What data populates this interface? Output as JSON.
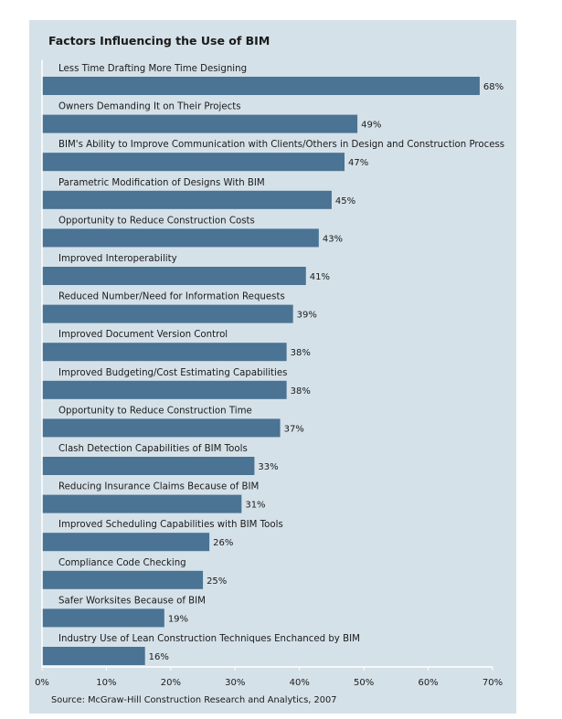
{
  "chart_data": {
    "type": "bar",
    "orientation": "horizontal",
    "title": "Factors Influencing the Use of BIM",
    "source": "Source: McGraw-Hill Construction Research and Analytics, 2007",
    "xlim": [
      0,
      70
    ],
    "x_ticks": [
      "0%",
      "10%",
      "20%",
      "30%",
      "40%",
      "50%",
      "60%",
      "70%"
    ],
    "grid": false,
    "bar_color": "#4a7394",
    "categories": [
      "Less Time Drafting More Time Designing",
      "Owners  Demanding It on Their Projects",
      "BIM's Ability to Improve Communication with Clients/Others in Design and Construction Process",
      "Parametric Modification of Designs With BIM",
      "Opportunity to Reduce Construction Costs",
      "Improved Interoperability",
      "Reduced Number/Need for Information Requests",
      "Improved Document Version Control",
      "Improved Budgeting/Cost Estimating Capabilities",
      "Opportunity to Reduce Construction Time",
      "Clash Detection Capabilities of BIM Tools",
      "Reducing Insurance Claims Because of BIM",
      "Improved Scheduling Capabilities with BIM Tools",
      "Compliance Code Checking",
      "Safer Worksites Because of BIM",
      "Industry Use of Lean Construction Techniques Enchanced by BIM"
    ],
    "values": [
      68,
      49,
      47,
      45,
      43,
      41,
      39,
      38,
      38,
      37,
      33,
      31,
      26,
      25,
      19,
      16
    ],
    "value_labels": [
      "68%",
      "49%",
      "47%",
      "45%",
      "43%",
      "41%",
      "39%",
      "38%",
      "38%",
      "37%",
      "33%",
      "31%",
      "26%",
      "25%",
      "19%",
      "16%"
    ]
  }
}
